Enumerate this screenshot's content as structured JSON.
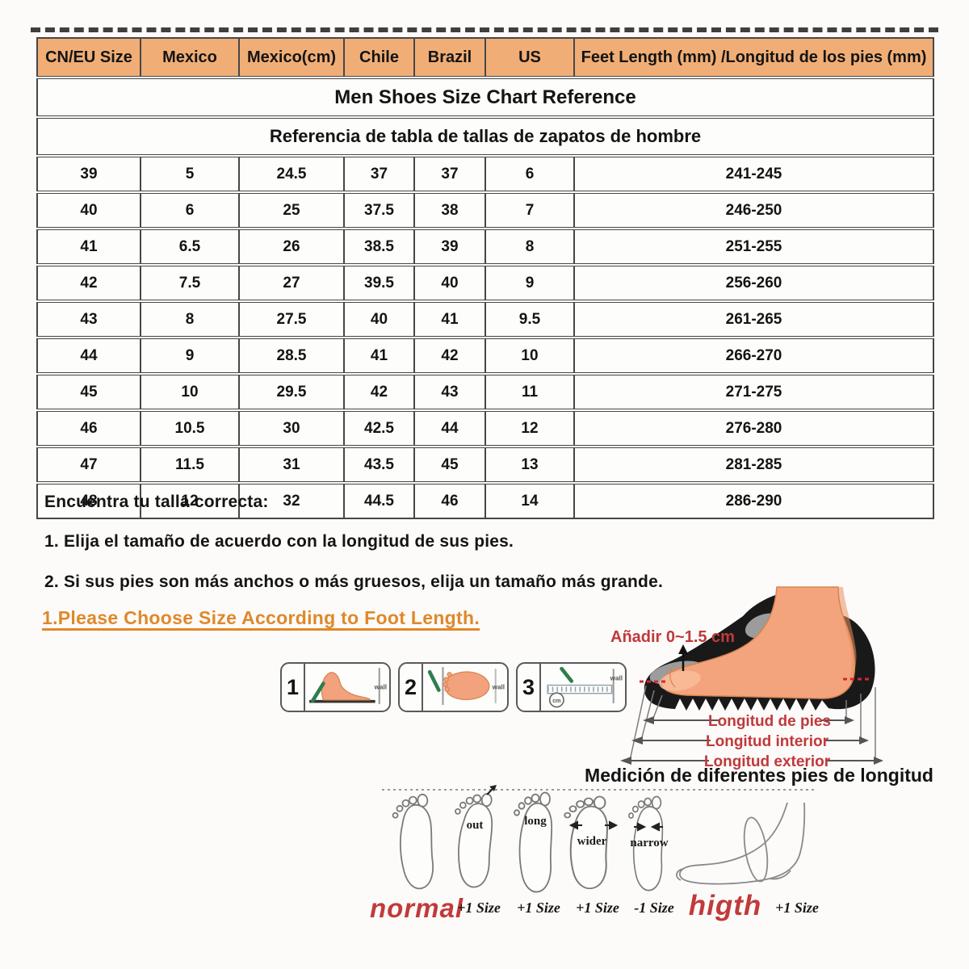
{
  "size_chart": {
    "title": "Men Shoes Size Chart Reference",
    "subtitle": "Referencia de tabla de tallas de zapatos de hombre",
    "columns": [
      "CN/EU Size",
      "Mexico",
      "Mexico(cm)",
      "Chile",
      "Brazil",
      "US",
      "Feet Length (mm) /Longitud de los pies (mm)"
    ],
    "rows": [
      [
        "39",
        "5",
        "24.5",
        "37",
        "37",
        "6",
        "241-245"
      ],
      [
        "40",
        "6",
        "25",
        "37.5",
        "38",
        "7",
        "246-250"
      ],
      [
        "41",
        "6.5",
        "26",
        "38.5",
        "39",
        "8",
        "251-255"
      ],
      [
        "42",
        "7.5",
        "27",
        "39.5",
        "40",
        "9",
        "256-260"
      ],
      [
        "43",
        "8",
        "27.5",
        "40",
        "41",
        "9.5",
        "261-265"
      ],
      [
        "44",
        "9",
        "28.5",
        "41",
        "42",
        "10",
        "266-270"
      ],
      [
        "45",
        "10",
        "29.5",
        "42",
        "43",
        "11",
        "271-275"
      ],
      [
        "46",
        "10.5",
        "30",
        "42.5",
        "44",
        "12",
        "276-280"
      ],
      [
        "47",
        "11.5",
        "31",
        "43.5",
        "45",
        "13",
        "281-285"
      ],
      [
        "48",
        "12",
        "32",
        "44.5",
        "46",
        "14",
        "286-290"
      ]
    ]
  },
  "fit_notes": {
    "heading": "Encuentra tu talla correcta:",
    "item1": "1. Elija el tamaño de acuerdo con la longitud de sus pies.",
    "item2": "2. Si sus pies son más anchos o más gruesos, elija un tamaño más grande."
  },
  "measure": {
    "heading": "1.Please Choose Size According to Foot Length.",
    "add_note": "Añadir 0~1.5 cm",
    "steps": [
      {
        "num": "1",
        "wall_label": "wall"
      },
      {
        "num": "2",
        "wall_label": "wall"
      },
      {
        "num": "3",
        "wall_label": "wall",
        "unit_label": "cm"
      }
    ],
    "length_labels": [
      "Longitud de pies",
      "Longitud interior",
      "Longitud exterior"
    ],
    "caption": "Medición de diferentes pies de longitud"
  },
  "foot_shapes": {
    "inner_labels": [
      "out",
      "long",
      "wider",
      "narrow"
    ],
    "bottom_labels": [
      "normal",
      "+1 Size",
      "+1 Size",
      "+1 Size",
      "-1 Size",
      "higth",
      "+1 Size"
    ]
  },
  "colors": {
    "header_bg": "#f0ae76",
    "accent_orange": "#e0882a",
    "label_red": "#c0393b"
  }
}
